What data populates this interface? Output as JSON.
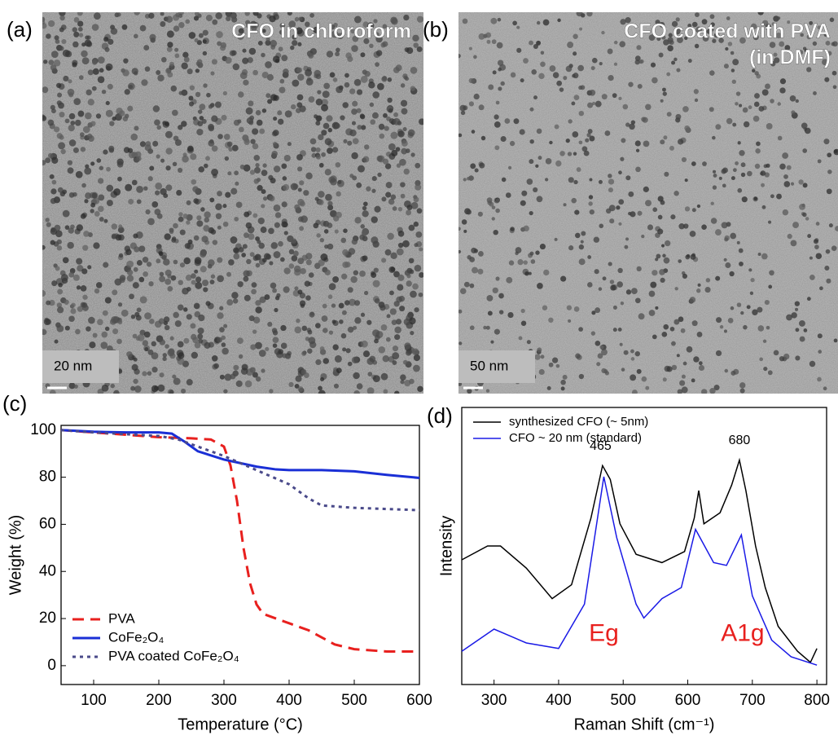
{
  "panels": [
    {
      "label": "(a)",
      "caption": [
        "CFO in chloroform"
      ],
      "scale_bar": "20 nm"
    },
    {
      "label": "(b)",
      "caption": [
        "CFO coated with PVA",
        "(in DMF)"
      ],
      "scale_bar": "50 nm"
    }
  ],
  "chart_data": [
    {
      "type": "line",
      "panel_label": "(c)",
      "x_label": "Temperature (°C)",
      "y_label": "Weight (%)",
      "xlim": [
        50,
        600
      ],
      "ylim": [
        -8,
        102
      ],
      "xticks": [
        100,
        200,
        300,
        400,
        500,
        600
      ],
      "yticks": [
        0,
        20,
        40,
        60,
        80,
        100
      ],
      "series": [
        {
          "name": "PVA",
          "color": "#e8201e",
          "dash": "dashed",
          "x": [
            50,
            100,
            150,
            200,
            250,
            280,
            300,
            310,
            320,
            330,
            340,
            350,
            360,
            380,
            400,
            430,
            450,
            470,
            500,
            550,
            600
          ],
          "values": [
            100,
            99,
            98,
            97,
            96.5,
            96,
            93,
            85,
            70,
            50,
            35,
            26,
            22,
            20,
            18,
            15,
            12,
            9,
            7,
            6,
            6
          ]
        },
        {
          "name": "CoFe₂O₄",
          "color": "#1a2fd6",
          "dash": "solid",
          "x": [
            50,
            100,
            150,
            200,
            220,
            240,
            260,
            300,
            350,
            380,
            400,
            450,
            500,
            550,
            600
          ],
          "values": [
            100,
            99.3,
            99,
            99,
            98.5,
            95,
            91,
            87.5,
            84.5,
            83.3,
            83,
            83,
            82.5,
            81,
            79.7
          ]
        },
        {
          "name": "PVA coated CoFe₂O₄",
          "color": "#4a4a8a",
          "dash": "dotted",
          "x": [
            50,
            100,
            200,
            230,
            260,
            300,
            350,
            400,
            430,
            450,
            500,
            550,
            600
          ],
          "values": [
            100,
            99,
            97.5,
            96,
            93,
            89,
            83,
            77,
            71,
            68,
            67,
            66.5,
            66
          ]
        }
      ]
    },
    {
      "type": "line",
      "panel_label": "(d)",
      "x_label": "Raman Shift (cm⁻¹)",
      "y_label": "Intensity",
      "xlim": [
        250,
        815
      ],
      "ylim": [
        0,
        100
      ],
      "xticks": [
        300,
        400,
        500,
        600,
        700,
        800
      ],
      "series": [
        {
          "name": "synthesized CFO (~ 5nm)",
          "color": "#000000",
          "dash": "solid",
          "x": [
            250,
            290,
            310,
            350,
            390,
            420,
            450,
            468,
            480,
            495,
            520,
            560,
            595,
            610,
            617,
            625,
            650,
            668,
            680,
            690,
            705,
            720,
            740,
            770,
            790,
            800
          ],
          "values": [
            45,
            50,
            50,
            42,
            31,
            36,
            60,
            79,
            74,
            58,
            47,
            44,
            48,
            60,
            70,
            58,
            62,
            72,
            81,
            70,
            50,
            35,
            21,
            12,
            8,
            13
          ]
        },
        {
          "name": "CFO ~ 20 nm (standard)",
          "color": "#1a1ae6",
          "dash": "solid",
          "x": [
            250,
            300,
            350,
            400,
            440,
            470,
            490,
            520,
            532,
            560,
            590,
            612,
            640,
            660,
            683,
            700,
            730,
            760,
            800
          ],
          "values": [
            12,
            20,
            15,
            13,
            29,
            75,
            53,
            29,
            24,
            31,
            35,
            56,
            44,
            43,
            54,
            32,
            16,
            10,
            7
          ]
        }
      ],
      "annotations": [
        {
          "text": "465",
          "x": 465,
          "y": 86,
          "color": "#000000"
        },
        {
          "text": "680",
          "x": 680,
          "y": 88,
          "color": "#000000"
        },
        {
          "text": "Eg",
          "x": 470,
          "y": 18,
          "color": "#e8201e"
        },
        {
          "text": "A1g",
          "x": 685,
          "y": 18,
          "color": "#e8201e"
        }
      ]
    }
  ]
}
